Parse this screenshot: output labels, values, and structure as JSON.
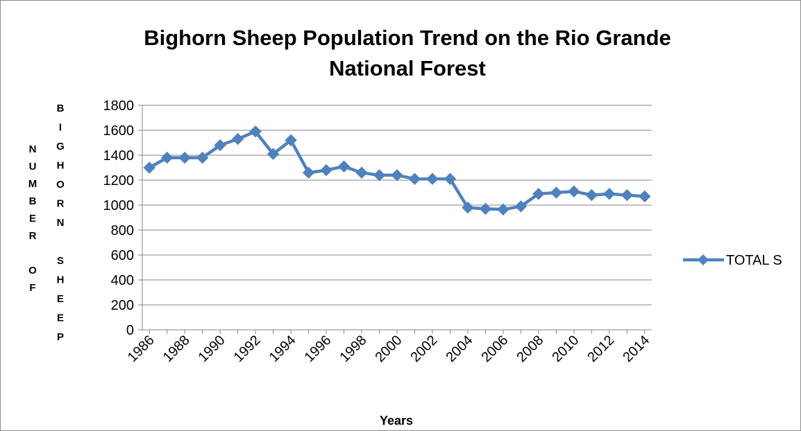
{
  "chart_data": {
    "type": "line",
    "title": "Bighorn Sheep Population Trend on the Rio Grande National Forest",
    "title_lines": [
      "Bighorn Sheep Population Trend on the Rio Grande",
      "National Forest"
    ],
    "xlabel": "Years",
    "ylabel_outer": "NUMBER OF",
    "ylabel_inner": "BIGHORN SHEEP",
    "ylim": [
      0,
      1800
    ],
    "yticks": [
      0,
      200,
      400,
      600,
      800,
      1000,
      1200,
      1400,
      1600,
      1800
    ],
    "xtick_labels": [
      "1986",
      "1988",
      "1990",
      "1992",
      "1994",
      "1996",
      "1998",
      "2000",
      "2002",
      "2004",
      "2006",
      "2008",
      "2010",
      "2012",
      "2014"
    ],
    "grid": true,
    "legend_position": "right",
    "x": [
      1986,
      1987,
      1988,
      1989,
      1990,
      1991,
      1992,
      1993,
      1994,
      1995,
      1996,
      1997,
      1998,
      1999,
      2000,
      2001,
      2002,
      2003,
      2004,
      2005,
      2006,
      2007,
      2008,
      2009,
      2010,
      2011,
      2012,
      2013,
      2014
    ],
    "series": [
      {
        "name": "TOTAL S",
        "color": "#4f81bd",
        "values": [
          1300,
          1380,
          1380,
          1380,
          1480,
          1530,
          1590,
          1410,
          1520,
          1260,
          1280,
          1310,
          1260,
          1240,
          1240,
          1210,
          1210,
          1210,
          980,
          970,
          965,
          990,
          1090,
          1100,
          1110,
          1080,
          1090,
          1080,
          1070
        ]
      }
    ]
  }
}
